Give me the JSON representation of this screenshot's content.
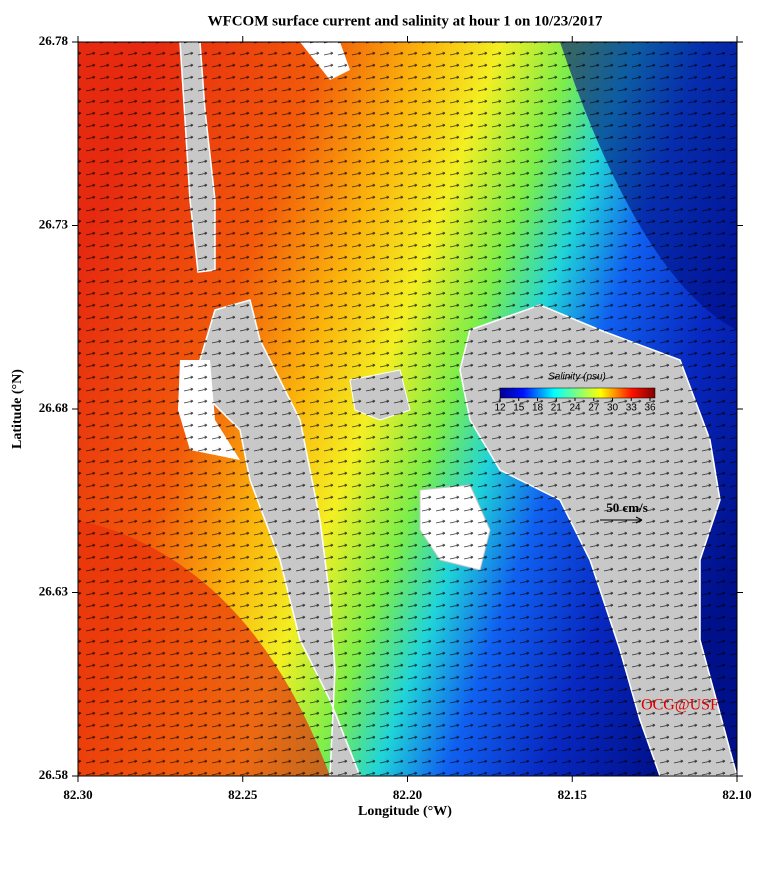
{
  "title": "WFCOM surface current and salinity at hour 1 on 10/23/2017",
  "x_axis": {
    "label": "Longitude (°W)",
    "lim": [
      82.3,
      82.1
    ],
    "ticks": [
      {
        "value": 82.3,
        "label": "82.30"
      },
      82.25,
      {
        "value": 82.2,
        "label": "82.20"
      },
      82.15,
      {
        "value": 82.1,
        "label": "82.10"
      }
    ]
  },
  "y_axis": {
    "label": "Latitude (°N)",
    "lim": [
      26.58,
      26.78
    ],
    "ticks": [
      26.58,
      26.63,
      26.68,
      26.73,
      26.78
    ]
  },
  "colorbar": {
    "label": "Salinity (psu)",
    "lim": [
      12,
      36
    ],
    "ticks": [
      12,
      15,
      18,
      21,
      24,
      27,
      30,
      33,
      36
    ]
  },
  "scale_arrow": {
    "label": "50 cm/s"
  },
  "credit": "OCG@USF"
}
